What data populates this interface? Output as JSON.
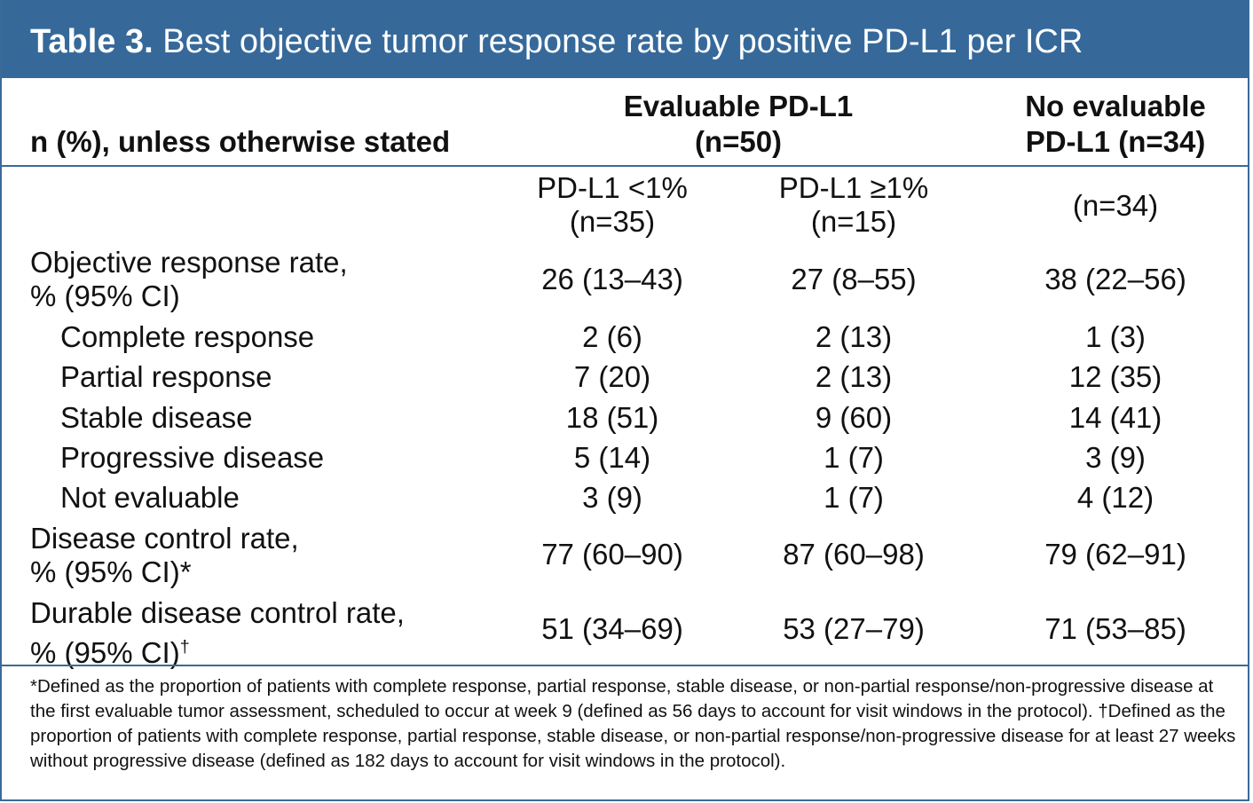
{
  "title": {
    "label": "Table 3.",
    "text": " Best objective tumor response rate by positive PD-L1 per ICR"
  },
  "header": {
    "row_label": "n (%), unless otherwise stated",
    "group1_line1": "Evaluable PD-L1",
    "group1_line2": "(n=50)",
    "group2_line1": "No evaluable",
    "group2_line2": "PD-L1 (n=34)"
  },
  "subheader": {
    "col1_line1": "PD-L1 <1%",
    "col1_line2": "(n=35)",
    "col2_line1": "PD-L1 ≥1%",
    "col2_line2": "(n=15)",
    "col3": "(n=34)"
  },
  "rows": [
    {
      "label_line1": "Objective response rate,",
      "label_line2": "% (95% CI)",
      "c1": "26 (13–43)",
      "c2": "27 (8–55)",
      "c3": "38 (22–56)"
    },
    {
      "label": "Complete response",
      "c1": "2 (6)",
      "c2": "2 (13)",
      "c3": "1 (3)"
    },
    {
      "label": "Partial response",
      "c1": "7 (20)",
      "c2": "2 (13)",
      "c3": "12 (35)"
    },
    {
      "label": "Stable disease",
      "c1": "18 (51)",
      "c2": "9 (60)",
      "c3": "14 (41)"
    },
    {
      "label": "Progressive disease",
      "c1": "5 (14)",
      "c2": "1 (7)",
      "c3": "3 (9)"
    },
    {
      "label": "Not evaluable",
      "c1": "3 (9)",
      "c2": "1 (7)",
      "c3": "4 (12)"
    },
    {
      "label_line1": "Disease control rate,",
      "label_line2": "% (95% CI)",
      "mark": "*",
      "c1": "77 (60–90)",
      "c2": "87 (60–98)",
      "c3": "79 (62–91)"
    },
    {
      "label_line1": "Durable disease control rate,",
      "label_line2": "% (95% CI)",
      "mark": "†",
      "c1": "51 (34–69)",
      "c2": "53 (27–79)",
      "c3": "71 (53–85)"
    }
  ],
  "footnote": "*Defined as the proportion of patients with complete response, partial response, stable disease, or non-partial response/non-progressive disease at the first evaluable tumor assessment, scheduled to occur at week 9 (defined as 56 days to account for visit windows in the protocol). †Defined as the proportion of patients with complete response, partial response, stable disease, or non-partial response/non-progressive disease for at least 27 weeks without progressive disease (defined as 182 days to account for visit windows in the protocol)."
}
